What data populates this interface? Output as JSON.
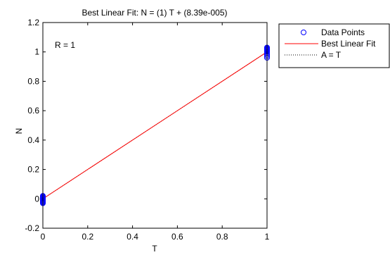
{
  "chart_data": {
    "type": "scatter",
    "title": "Best Linear Fit:  N = (1) T + (8.39e-005)",
    "xlabel": "T",
    "ylabel": "N",
    "xlim": [
      0,
      1
    ],
    "ylim": [
      -0.2,
      1.2
    ],
    "xticks": [
      0,
      0.2,
      0.4,
      0.6,
      0.8,
      1
    ],
    "yticks": [
      -0.2,
      0,
      0.2,
      0.4,
      0.6,
      0.8,
      1,
      1.2
    ],
    "xtick_labels": [
      "0",
      "0.2",
      "0.4",
      "0.6",
      "0.8",
      "1"
    ],
    "ytick_labels": [
      "-0.2",
      "0",
      "0.2",
      "0.4",
      "0.6",
      "0.8",
      "1",
      "1.2"
    ],
    "grid": false,
    "annotation": "R = 1",
    "legend_position": "outside top-right",
    "series": [
      {
        "name": "Data Points",
        "kind": "markers",
        "marker": "circle",
        "color": "#0000ff",
        "points": [
          [
            0,
            -0.03
          ],
          [
            0,
            -0.025
          ],
          [
            0,
            -0.02
          ],
          [
            0,
            -0.015
          ],
          [
            0,
            -0.01
          ],
          [
            0,
            -0.005
          ],
          [
            0,
            0
          ],
          [
            0,
            0.005
          ],
          [
            0,
            0.01
          ],
          [
            0,
            0.015
          ],
          [
            0,
            0.02
          ],
          [
            1,
            0.96
          ],
          [
            1,
            0.97
          ],
          [
            1,
            0.98
          ],
          [
            1,
            0.99
          ],
          [
            1,
            1.0
          ],
          [
            1,
            1.005
          ],
          [
            1,
            1.01
          ],
          [
            1,
            1.015
          ],
          [
            1,
            1.02
          ],
          [
            1,
            1.025
          ],
          [
            1,
            1.03
          ]
        ]
      },
      {
        "name": "Best Linear Fit",
        "kind": "line",
        "style": "solid",
        "color": "#ff0000",
        "points": [
          [
            0,
            8.39e-05
          ],
          [
            1,
            1.0000839
          ]
        ]
      },
      {
        "name": "A = T",
        "kind": "line",
        "style": "dotted",
        "color": "#000000",
        "points": [
          [
            0,
            0
          ],
          [
            1,
            1
          ]
        ]
      }
    ]
  }
}
